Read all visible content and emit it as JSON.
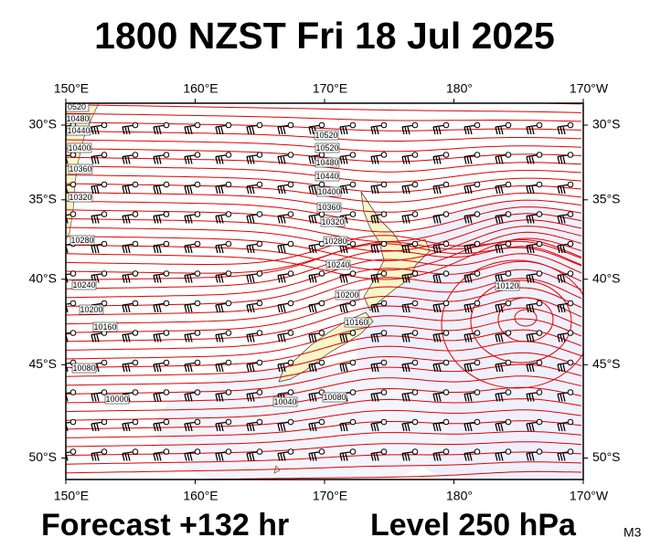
{
  "title": "1800 NZST Fri 18 Jul 2025",
  "footer": {
    "forecast": "Forecast +132 hr",
    "level": "Level 250 hPa",
    "model": "M3"
  },
  "map": {
    "lon_ticks": [
      {
        "value": 150,
        "label": "150°E"
      },
      {
        "value": 160,
        "label": "160°E"
      },
      {
        "value": 170,
        "label": "170°E"
      },
      {
        "value": 180,
        "label": "180°"
      },
      {
        "value": 190,
        "label": "170°W"
      }
    ],
    "lat_ticks": [
      {
        "value": -30,
        "label": "30°S"
      },
      {
        "value": -35,
        "label": "35°S"
      },
      {
        "value": -40,
        "label": "40°S"
      },
      {
        "value": -45,
        "label": "45°S"
      },
      {
        "value": -50,
        "label": "50°S"
      }
    ],
    "contour_labels": [
      "0520",
      "10480",
      "10440",
      "10400",
      "10360",
      "10320",
      "10280",
      "10240",
      "10200",
      "10160",
      "10080",
      "10000",
      "10520",
      "10520",
      "10480",
      "10440",
      "10400",
      "10360",
      "10320",
      "10280",
      "10240",
      "10200",
      "10160",
      "10120",
      "10080",
      "10040"
    ]
  }
}
